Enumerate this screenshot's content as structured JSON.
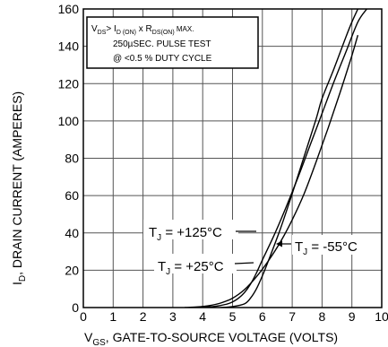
{
  "chart_data": {
    "type": "line",
    "title": "",
    "xlabel_parts": {
      "v_main": "V",
      "v_sub": "GS",
      "rest": ", GATE-TO-SOURCE VOLTAGE (VOLTS)"
    },
    "ylabel_parts": {
      "i_main": "I",
      "i_sub": "D",
      "rest": ", DRAIN CURRENT (AMPERES)"
    },
    "xlim": [
      0,
      10
    ],
    "ylim": [
      0,
      160
    ],
    "xticks": [
      0,
      1,
      2,
      3,
      4,
      5,
      6,
      7,
      8,
      9,
      10
    ],
    "yticks": [
      0,
      20,
      40,
      60,
      80,
      100,
      120,
      140,
      160
    ],
    "grid": true,
    "series": [
      {
        "name": "T_J = +125°C",
        "x": [
          3.4,
          3.8,
          4.2,
          4.6,
          5.0,
          5.4,
          5.8,
          6.2,
          6.6,
          7.0,
          7.4,
          7.8,
          8.2,
          8.6,
          9.0,
          9.2
        ],
        "y": [
          0.0,
          0.3,
          1.0,
          2.4,
          5.0,
          9.6,
          16.5,
          25.0,
          35.0,
          47.0,
          61.0,
          78.0,
          96.0,
          115.0,
          135.0,
          146.0
        ]
      },
      {
        "name": "T_J = +25°C",
        "x": [
          3.6,
          4.0,
          4.4,
          4.8,
          5.0,
          5.2,
          5.4,
          5.6,
          5.8,
          6.0,
          6.4,
          6.8,
          7.2,
          7.6,
          8.0,
          8.4,
          8.8,
          9.2,
          9.5
        ],
        "y": [
          0.0,
          0.2,
          0.6,
          1.8,
          3.0,
          5.0,
          8.0,
          12.5,
          18.5,
          25.5,
          39.0,
          54.0,
          70.0,
          87.0,
          104.0,
          121.0,
          137.0,
          153.0,
          160.0
        ]
      },
      {
        "name": "T_J = -55°C",
        "x": [
          4.6,
          5.0,
          5.4,
          5.6,
          5.8,
          6.0,
          6.2,
          6.6,
          7.0,
          7.4,
          7.8,
          8.0,
          8.4,
          8.8,
          9.0,
          9.2
        ],
        "y": [
          0.0,
          0.5,
          2.0,
          5.0,
          10.0,
          17.0,
          25.0,
          42.0,
          61.0,
          81.0,
          101.0,
          112.0,
          128.0,
          145.0,
          153.0,
          160.0
        ]
      }
    ],
    "annotations": {
      "box_line1": {
        "v": "V",
        "v_sub": "DS",
        "gt": "> I",
        "i_sub": "D (ON)",
        "x": " x  R",
        "r_sub": "DS(ON)",
        "max": " MAX."
      },
      "box_line2": "250µSEC. PULSE TEST",
      "box_line3": "@ <0.5 % DUTY CYCLE",
      "label_125": {
        "t": "T",
        "sub": "J",
        "val": " = +125°C"
      },
      "label_25": {
        "t": "T",
        "sub": "J",
        "val": " = +25°C"
      },
      "label_55": {
        "t": "T",
        "sub": "J",
        "val": " = -55°C"
      }
    }
  }
}
